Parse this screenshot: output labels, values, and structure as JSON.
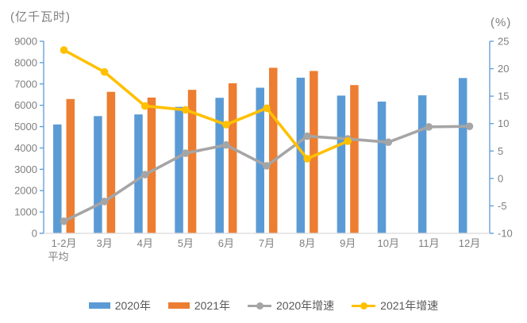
{
  "chart_data": {
    "type": "combo-bar-line",
    "left_axis": {
      "title": "(亿千瓦时)",
      "min": 0,
      "max": 9000,
      "step": 1000,
      "ticks": [
        "0",
        "1000",
        "2000",
        "3000",
        "4000",
        "5000",
        "6000",
        "7000",
        "8000",
        "9000"
      ]
    },
    "right_axis": {
      "title": "(%)",
      "min": -10,
      "max": 25,
      "step": 5,
      "ticks": [
        "-10",
        "-5",
        "0",
        "5",
        "10",
        "15",
        "20",
        "25"
      ]
    },
    "categories": [
      "1-2月\n平均",
      "3月",
      "4月",
      "5月",
      "6月",
      "7月",
      "8月",
      "9月",
      "10月",
      "11月",
      "12月"
    ],
    "series": [
      {
        "name": "2020年",
        "type": "bar",
        "axis": "left",
        "color": "#5B9BD5",
        "values": [
          5102,
          5493,
          5572,
          5926,
          6350,
          6824,
          7294,
          6454,
          6172,
          6467,
          7277
        ]
      },
      {
        "name": "2021年",
        "type": "bar",
        "axis": "left",
        "color": "#ED7D31",
        "values": [
          6294,
          6631,
          6361,
          6724,
          7033,
          7758,
          7607,
          6947,
          null,
          null,
          null
        ]
      },
      {
        "name": "2020年增速",
        "type": "line",
        "axis": "right",
        "color": "#A5A5A5",
        "values": [
          -7.8,
          -4.2,
          0.7,
          4.6,
          6.1,
          2.3,
          7.7,
          7.2,
          6.6,
          9.4,
          9.5
        ]
      },
      {
        "name": "2021年增速",
        "type": "line",
        "axis": "right",
        "color": "#FFC000",
        "values": [
          23.4,
          19.4,
          13.2,
          12.5,
          9.8,
          12.8,
          3.6,
          6.8,
          null,
          null,
          null
        ]
      }
    ],
    "legend": [
      {
        "label": "2020年",
        "swatch": "bar",
        "color": "#5B9BD5"
      },
      {
        "label": "2021年",
        "swatch": "bar",
        "color": "#ED7D31"
      },
      {
        "label": "2020年增速",
        "swatch": "line",
        "color": "#A5A5A5"
      },
      {
        "label": "2021年增速",
        "swatch": "line",
        "color": "#FFC000"
      }
    ],
    "grid": false,
    "legend_position": "bottom"
  },
  "colors": {
    "axis_line": "#5B9BD5",
    "baseline": "#D9D9D9",
    "tick_text": "#7F7F7F",
    "legend_text": "#595959",
    "background": "#FFFFFF"
  }
}
